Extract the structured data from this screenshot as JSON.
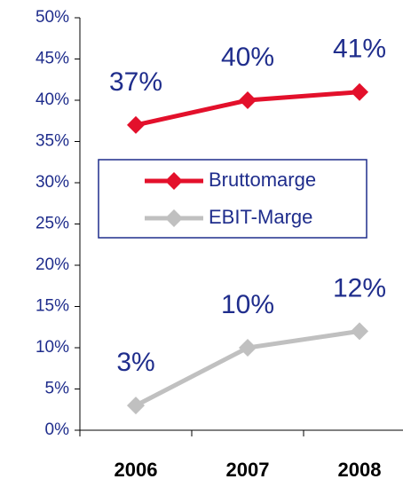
{
  "chart_data": {
    "type": "line",
    "categories": [
      "2006",
      "2007",
      "2008"
    ],
    "series": [
      {
        "name": "Bruttomarge",
        "color": "#e3102b",
        "values": [
          37,
          40,
          41
        ],
        "value_labels": [
          "37%",
          "40%",
          "41%"
        ]
      },
      {
        "name": "EBIT-Marge",
        "color": "#c0c0c0",
        "values": [
          3,
          10,
          12
        ],
        "value_labels": [
          "3%",
          "10%",
          "12%"
        ]
      }
    ],
    "ylim": [
      0,
      50
    ],
    "yticks": [
      {
        "value": 0,
        "label": "0%"
      },
      {
        "value": 5,
        "label": "5%"
      },
      {
        "value": 10,
        "label": "10%"
      },
      {
        "value": 15,
        "label": "15%"
      },
      {
        "value": 20,
        "label": "20%"
      },
      {
        "value": 25,
        "label": "25%"
      },
      {
        "value": 30,
        "label": "30%"
      },
      {
        "value": 35,
        "label": "35%"
      },
      {
        "value": 40,
        "label": "40%"
      },
      {
        "value": 45,
        "label": "45%"
      },
      {
        "value": 50,
        "label": "50%"
      }
    ],
    "legend": "center"
  }
}
